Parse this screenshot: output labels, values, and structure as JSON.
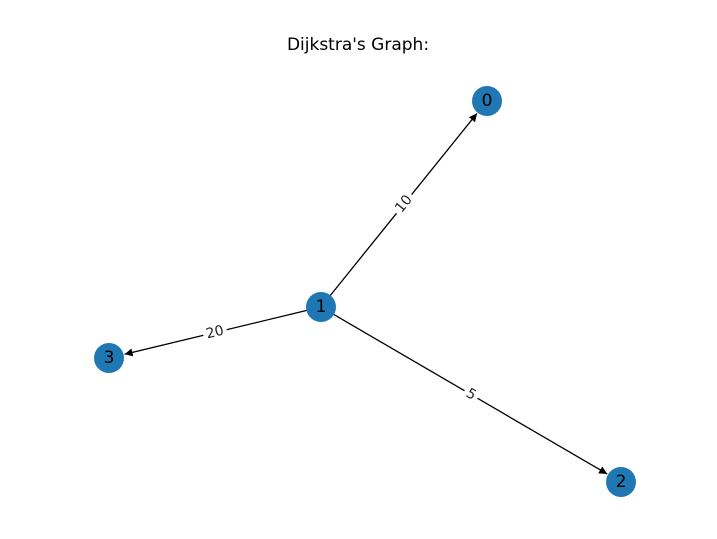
{
  "title": "Dijkstra's Graph:",
  "node_color": "#1f77b4",
  "edge_color": "#000000",
  "nodes": [
    {
      "id": "0",
      "label": "0"
    },
    {
      "id": "1",
      "label": "1"
    },
    {
      "id": "2",
      "label": "2"
    },
    {
      "id": "3",
      "label": "3"
    }
  ],
  "edges": [
    {
      "source": "1",
      "target": "0",
      "weight": "10"
    },
    {
      "source": "1",
      "target": "2",
      "weight": "5"
    },
    {
      "source": "1",
      "target": "3",
      "weight": "20"
    }
  ]
}
